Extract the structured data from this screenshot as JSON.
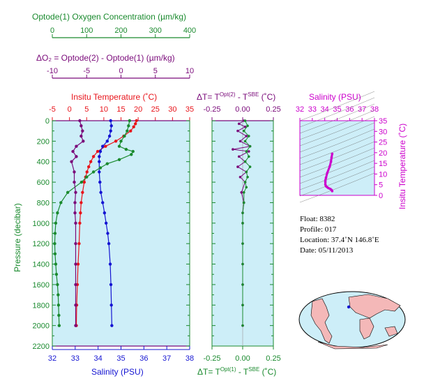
{
  "colors": {
    "oxygen": "#1a8a2e",
    "delta_o2": "#7a0a7a",
    "temperature": "#e8141b",
    "salinity": "#1414d2",
    "delta_t_top": "#7a0a7a",
    "delta_t_bottom": "#1a8a2e",
    "ts_panel": "#cc00cc",
    "panel_bg": "#cdeef8",
    "axis_green": "#1a8a2e"
  },
  "labels": {
    "oxygen_title": "Optode(1) Oxygen Concentration (µm/kg)",
    "delta_o2_title": "ΔO₂ = Optode(2) - Optode(1)      (µm/kg)",
    "temp_title": "Insitu Temperature (˚C)",
    "pressure_label": "Pressure (decibar)",
    "salinity_label": "Salinity (PSU)",
    "dt_top_title": "ΔT= T^Opt(2) - T^SBE (˚C)",
    "dt_bottom_title": "ΔT= T^Opt(1) - T^SBE (˚C)",
    "ts_top_title": "Salinity (PSU)",
    "ts_right_label": "Insitu Temperature (˚C)",
    "dt_top_main": "ΔT= T",
    "dt_top_sup1": "Opt(2)",
    "dt_top_mid": " - T",
    "dt_top_sup2": "SBE",
    "dt_top_end": " (˚C)",
    "dt_bot_main": "ΔT= T",
    "dt_bot_sup1": "Opt(1)",
    "dt_bot_mid": " - T",
    "dt_bot_sup2": "SBE",
    "dt_bot_end": " (˚C)"
  },
  "float_info": {
    "float": "Float:  8382",
    "profile": "Profile:  017",
    "location": "Location:  37.4˚N  146.8˚E",
    "date": "Date:  05/11/2013"
  },
  "chart_data": [
    {
      "type": "line",
      "panel": "main-profile",
      "y_axis": {
        "label": "Pressure (decibar)",
        "range": [
          2200,
          0
        ],
        "ticks": [
          0,
          200,
          400,
          600,
          800,
          1000,
          1200,
          1400,
          1600,
          1800,
          2000,
          2200
        ]
      },
      "top_axes": [
        {
          "name": "Optode(1) Oxygen Concentration (µm/kg)",
          "range": [
            0,
            400
          ],
          "ticks": [
            "0",
            "100",
            "200",
            "300",
            "400"
          ]
        },
        {
          "name": "ΔO₂ = Optode(2) - Optode(1) (µm/kg)",
          "range": [
            -10,
            10
          ],
          "ticks": [
            "-10",
            "-5",
            "0",
            "5",
            "10"
          ]
        },
        {
          "name": "Insitu Temperature (˚C)",
          "range": [
            -5,
            35
          ],
          "ticks": [
            "-5",
            "0",
            "5",
            "10",
            "15",
            "20",
            "25",
            "30",
            "35"
          ]
        }
      ],
      "bottom_axis": {
        "name": "Salinity (PSU)",
        "range": [
          32,
          38
        ],
        "ticks": [
          "32",
          "33",
          "34",
          "35",
          "36",
          "37",
          "38"
        ]
      },
      "series": [
        {
          "name": "Insitu Temperature (˚C)",
          "axis": "temperature",
          "points": [
            [
              0,
              19.5
            ],
            [
              30,
              19.2
            ],
            [
              60,
              18.7
            ],
            [
              100,
              17.8
            ],
            [
              150,
              15.8
            ],
            [
              200,
              13.5
            ],
            [
              250,
              10.5
            ],
            [
              300,
              8.2
            ],
            [
              350,
              7.0
            ],
            [
              400,
              6.2
            ],
            [
              450,
              5.6
            ],
            [
              500,
              5.1
            ],
            [
              550,
              4.7
            ],
            [
              600,
              4.3
            ],
            [
              700,
              3.8
            ],
            [
              800,
              3.4
            ],
            [
              900,
              3.2
            ],
            [
              1000,
              3.0
            ],
            [
              1200,
              2.8
            ],
            [
              1400,
              2.5
            ],
            [
              1600,
              2.3
            ],
            [
              1800,
              2.1
            ],
            [
              2000,
              2.0
            ]
          ]
        },
        {
          "name": "Salinity (PSU)",
          "axis": "salinity",
          "points": [
            [
              0,
              34.55
            ],
            [
              50,
              34.58
            ],
            [
              100,
              34.55
            ],
            [
              150,
              34.5
            ],
            [
              200,
              34.4
            ],
            [
              250,
              34.2
            ],
            [
              300,
              34.1
            ],
            [
              350,
              34.05
            ],
            [
              400,
              34.05
            ],
            [
              500,
              34.05
            ],
            [
              600,
              34.08
            ],
            [
              700,
              34.12
            ],
            [
              800,
              34.2
            ],
            [
              900,
              34.28
            ],
            [
              1000,
              34.35
            ],
            [
              1100,
              34.42
            ],
            [
              1200,
              34.47
            ],
            [
              1400,
              34.53
            ],
            [
              1600,
              34.56
            ],
            [
              1800,
              34.58
            ],
            [
              2000,
              34.6
            ]
          ]
        },
        {
          "name": "Optode(1) Oxygen Concentration (µm/kg)",
          "axis": "oxygen",
          "points": [
            [
              0,
              225
            ],
            [
              50,
              222
            ],
            [
              100,
              218
            ],
            [
              150,
              210
            ],
            [
              200,
              200
            ],
            [
              250,
              195
            ],
            [
              280,
              215
            ],
            [
              300,
              235
            ],
            [
              330,
              230
            ],
            [
              380,
              195
            ],
            [
              420,
              160
            ],
            [
              460,
              140
            ],
            [
              500,
              120
            ],
            [
              550,
              100
            ],
            [
              600,
              85
            ],
            [
              700,
              45
            ],
            [
              800,
              25
            ],
            [
              900,
              15
            ],
            [
              1000,
              10
            ],
            [
              1100,
              8
            ],
            [
              1200,
              7
            ],
            [
              1300,
              8
            ],
            [
              1400,
              10
            ],
            [
              1500,
              12
            ],
            [
              1600,
              15
            ],
            [
              1700,
              17
            ],
            [
              1800,
              18
            ],
            [
              1900,
              19
            ],
            [
              2000,
              20
            ]
          ]
        },
        {
          "name": "ΔO₂ = Optode(2) - Optode(1)",
          "axis": "delta_o2",
          "points": [
            [
              0,
              -6
            ],
            [
              50,
              -5.8
            ],
            [
              100,
              -5.6
            ],
            [
              150,
              -5.8
            ],
            [
              200,
              -5.5
            ],
            [
              250,
              -6.5
            ],
            [
              300,
              -7
            ],
            [
              350,
              -6.5
            ],
            [
              400,
              -7.2
            ],
            [
              500,
              -6.8
            ],
            [
              600,
              -6.8
            ],
            [
              700,
              -6.6
            ],
            [
              800,
              -6.7
            ],
            [
              900,
              -6.7
            ],
            [
              1000,
              -6.6
            ],
            [
              1200,
              -6.6
            ],
            [
              1400,
              -6.6
            ],
            [
              1600,
              -6.6
            ],
            [
              1800,
              -6.6
            ],
            [
              2000,
              -6.6
            ]
          ]
        }
      ]
    },
    {
      "type": "scatter",
      "panel": "delta-t",
      "y_axis": {
        "range": [
          2200,
          0
        ]
      },
      "top_axis": {
        "name": "ΔT= T^Opt(2) - T^SBE (˚C)",
        "range": [
          -0.25,
          0.25
        ],
        "ticks": [
          "-0.25",
          "0.00",
          "0.25"
        ]
      },
      "bottom_axis": {
        "name": "ΔT= T^Opt(1) - T^SBE (˚C)",
        "range": [
          -0.25,
          0.25
        ],
        "ticks": [
          "-0.25",
          "0.00",
          "0.25"
        ]
      },
      "series": [
        {
          "name": "T^Opt(2) - T^SBE",
          "points": [
            [
              0,
              0.01
            ],
            [
              30,
              -0.03
            ],
            [
              60,
              0.02
            ],
            [
              100,
              -0.04
            ],
            [
              150,
              0.03
            ],
            [
              200,
              -0.02
            ],
            [
              250,
              0.06
            ],
            [
              280,
              -0.08
            ],
            [
              300,
              0.05
            ],
            [
              350,
              -0.03
            ],
            [
              400,
              0.02
            ],
            [
              450,
              -0.04
            ],
            [
              500,
              0.03
            ],
            [
              550,
              -0.02
            ],
            [
              600,
              0.02
            ],
            [
              700,
              -0.01
            ],
            [
              800,
              0.01
            ],
            [
              900,
              0.0
            ],
            [
              1000,
              0.0
            ],
            [
              1200,
              0.0
            ],
            [
              1400,
              0.0
            ],
            [
              1600,
              0.0
            ],
            [
              1800,
              0.0
            ],
            [
              2000,
              0.0
            ]
          ]
        },
        {
          "name": "T^Opt(1) - T^SBE",
          "points": [
            [
              0,
              0.02
            ],
            [
              50,
              0.04
            ],
            [
              100,
              0.01
            ],
            [
              150,
              0.05
            ],
            [
              200,
              0.02
            ],
            [
              250,
              0.06
            ],
            [
              300,
              0.03
            ],
            [
              350,
              0.05
            ],
            [
              400,
              0.02
            ],
            [
              450,
              0.06
            ],
            [
              500,
              0.03
            ],
            [
              550,
              0.04
            ],
            [
              600,
              0.02
            ],
            [
              650,
              0.03
            ],
            [
              700,
              0.01
            ],
            [
              800,
              0.01
            ],
            [
              900,
              0.0
            ],
            [
              1000,
              0.0
            ],
            [
              1200,
              0.0
            ],
            [
              1400,
              0.0
            ],
            [
              1600,
              0.0
            ],
            [
              1800,
              0.0
            ],
            [
              2000,
              0.0
            ]
          ]
        }
      ]
    },
    {
      "type": "scatter",
      "panel": "ts-diagram",
      "x_axis": {
        "name": "Salinity (PSU)",
        "range": [
          32,
          38
        ],
        "ticks": [
          "32",
          "33",
          "34",
          "35",
          "36",
          "37",
          "38"
        ]
      },
      "y_axis": {
        "name": "Insitu Temperature (˚C)",
        "range": [
          0,
          35
        ],
        "ticks": [
          "0",
          "5",
          "10",
          "15",
          "20",
          "25",
          "30",
          "35"
        ]
      },
      "points": [
        [
          34.6,
          19.5
        ],
        [
          34.55,
          17.8
        ],
        [
          34.5,
          15.8
        ],
        [
          34.4,
          13.5
        ],
        [
          34.2,
          10.5
        ],
        [
          34.1,
          8.2
        ],
        [
          34.05,
          7.0
        ],
        [
          34.05,
          6.2
        ],
        [
          34.05,
          5.1
        ],
        [
          34.1,
          4.3
        ],
        [
          34.2,
          3.8
        ],
        [
          34.3,
          3.4
        ],
        [
          34.45,
          3.0
        ],
        [
          34.55,
          2.5
        ],
        [
          34.6,
          2.0
        ]
      ]
    }
  ]
}
